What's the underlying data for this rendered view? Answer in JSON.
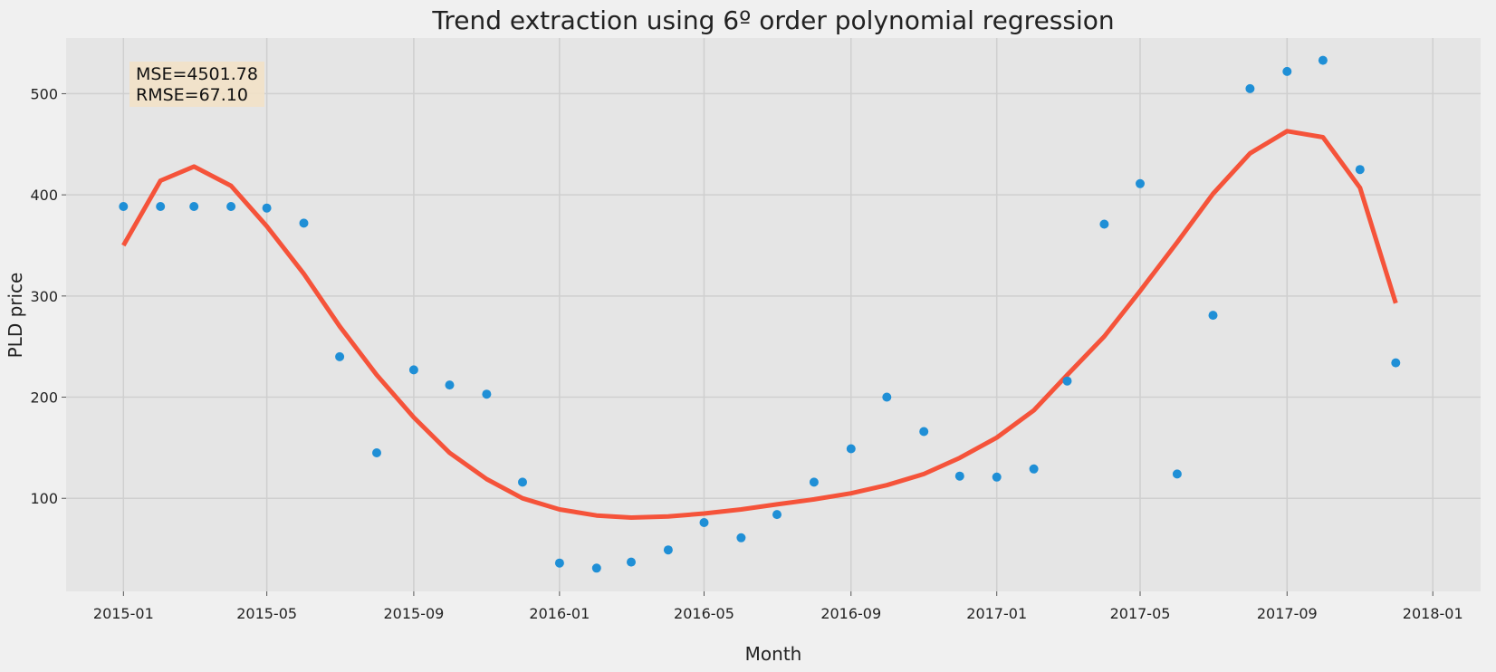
{
  "chart_data": {
    "type": "scatter",
    "title": "Trend extraction using 6º order polynomial regression",
    "xlabel": "Month",
    "ylabel": "PLD price",
    "x_ticks": [
      "2015-01",
      "2015-05",
      "2015-09",
      "2016-01",
      "2016-05",
      "2016-09",
      "2017-01",
      "2017-05",
      "2017-09",
      "2018-01"
    ],
    "y_ticks": [
      100,
      200,
      300,
      400,
      500
    ],
    "xlim": [
      "2014-11-14",
      "2018-02-10"
    ],
    "ylim": [
      8,
      555
    ],
    "grid": true,
    "annotation": {
      "mse": "MSE=4501.78",
      "rmse": "RMSE=67.10"
    },
    "colors": {
      "points": "#1f8fd6",
      "trend": "#f5533a",
      "plot_bg": "#e5e5e5",
      "page_bg": "#f0f0f0",
      "grid": "#cfcfcf",
      "anno_bg": "#f2e1c6"
    },
    "series": [
      {
        "type": "scatter",
        "x": [
          "2015-01",
          "2015-02",
          "2015-03",
          "2015-04",
          "2015-05",
          "2015-06",
          "2015-07",
          "2015-08",
          "2015-09",
          "2015-10",
          "2015-11",
          "2015-12",
          "2016-01",
          "2016-02",
          "2016-03",
          "2016-04",
          "2016-05",
          "2016-06",
          "2016-07",
          "2016-08",
          "2016-09",
          "2016-10",
          "2016-11",
          "2016-12",
          "2017-01",
          "2017-02",
          "2017-03",
          "2017-04",
          "2017-05",
          "2017-06",
          "2017-07",
          "2017-08",
          "2017-09",
          "2017-10",
          "2017-11",
          "2017-12"
        ],
        "values": [
          388.5,
          388.5,
          388.5,
          388.5,
          387,
          372,
          240,
          145,
          227,
          212,
          203,
          116,
          36,
          31,
          37,
          49,
          76,
          61,
          84,
          116,
          149,
          200,
          166,
          122,
          121,
          129,
          216,
          371,
          411,
          124,
          281,
          505,
          522,
          533,
          425,
          234
        ]
      },
      {
        "type": "line",
        "x": [
          "2015-01",
          "2015-02",
          "2015-03",
          "2015-04",
          "2015-05",
          "2015-06",
          "2015-07",
          "2015-08",
          "2015-09",
          "2015-10",
          "2015-11",
          "2015-12",
          "2016-01",
          "2016-02",
          "2016-03",
          "2016-04",
          "2016-05",
          "2016-06",
          "2016-07",
          "2016-08",
          "2016-09",
          "2016-10",
          "2016-11",
          "2016-12",
          "2017-01",
          "2017-02",
          "2017-03",
          "2017-04",
          "2017-05",
          "2017-06",
          "2017-07",
          "2017-08",
          "2017-09",
          "2017-10",
          "2017-11",
          "2017-12"
        ],
        "values": [
          350,
          414,
          428,
          409,
          369,
          322,
          270,
          222,
          180,
          145,
          119,
          100,
          89,
          83,
          81,
          82,
          85,
          89,
          94,
          99,
          105,
          113,
          124,
          140,
          160,
          187,
          222,
          260,
          305,
          353,
          401,
          441,
          463,
          457,
          407,
          293
        ]
      }
    ]
  }
}
